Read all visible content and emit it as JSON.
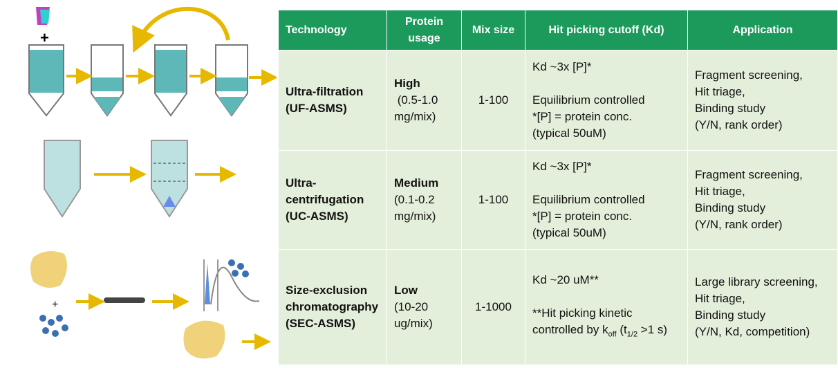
{
  "table": {
    "header": [
      "Technology",
      "Protein usage",
      "Mix size",
      "Hit picking cutoff (Kd)",
      "Application"
    ],
    "rows": [
      {
        "technology": [
          "Ultra-filtration",
          "(UF-ASMS)"
        ],
        "usage": {
          "level": "High",
          "detail": [
            " (0.5-1.0",
            "mg/mix)"
          ]
        },
        "mix": "1-100",
        "cutoff": [
          [
            [
              "Kd ~3x [P]*"
            ]
          ],
          [
            [
              "Equilibrium controlled"
            ],
            [
              "*[P] = protein conc."
            ],
            [
              "(typical 50uM)"
            ]
          ]
        ],
        "application": [
          "Fragment screening,",
          "Hit triage,",
          "Binding study",
          "(Y/N, rank order)"
        ]
      },
      {
        "technology": [
          "Ultra-",
          "centrifugation",
          "(UC-ASMS)"
        ],
        "usage": {
          "level": "Medium",
          "detail": [
            "(0.1-0.2",
            "mg/mix)"
          ]
        },
        "mix": "1-100",
        "cutoff": [
          [
            [
              "Kd ~3x [P]*"
            ]
          ],
          [
            [
              "Equilibrium controlled"
            ],
            [
              "*[P] = protein conc."
            ],
            [
              "(typical 50uM)"
            ]
          ]
        ],
        "application": [
          "Fragment screening,",
          "Hit triage,",
          "Binding study",
          "(Y/N, rank order)"
        ]
      },
      {
        "technology": [
          "Size-exclusion",
          "chromatography",
          "(SEC-ASMS)"
        ],
        "usage": {
          "level": "Low",
          "detail": [
            "(10-20",
            "ug/mix)"
          ]
        },
        "mix": "1-1000",
        "cutoff": [
          [
            [
              "Kd ~20 uM**"
            ]
          ],
          [
            [
              "**Hit picking kinetic"
            ],
            [
              "controlled by k",
              {
                "sub": "off"
              },
              " (t",
              {
                "sub": "1/2"
              },
              " >1 s)"
            ]
          ]
        ],
        "application": [
          "Large library screening,",
          "Hit triage,",
          "Binding study",
          "(Y/N, Kd, competition)"
        ]
      }
    ]
  }
}
